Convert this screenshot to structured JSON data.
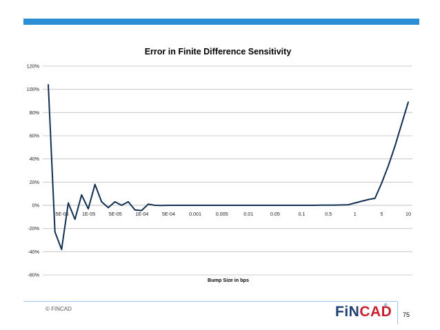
{
  "colors": {
    "top_band": "#2b8fd6",
    "series_line": "#0f2d4f",
    "gridline": "#bdbdbd",
    "footer_line": "#9ec5e6",
    "logo_blue": "#1d3f73",
    "logo_red": "#c8202f"
  },
  "footer": {
    "copyright": "© FINCAD",
    "logo_part_a": "FiN",
    "logo_part_b": "CAD",
    "logo_registered": "®",
    "page_number": "75"
  },
  "chart_data": {
    "type": "line",
    "title": "Error in Finite Difference Sensitivity",
    "xlabel": "Bump Size in bps",
    "ylabel": "",
    "ylim": [
      -60,
      120
    ],
    "y_unit": "%",
    "y_ticks": [
      {
        "value": 120,
        "label": "120%"
      },
      {
        "value": 100,
        "label": "100%"
      },
      {
        "value": 80,
        "label": "80%"
      },
      {
        "value": 60,
        "label": "60%"
      },
      {
        "value": 40,
        "label": "40%"
      },
      {
        "value": 20,
        "label": "20%"
      },
      {
        "value": 0,
        "label": "0%"
      },
      {
        "value": -20,
        "label": "-20%"
      },
      {
        "value": -40,
        "label": "-40%"
      },
      {
        "value": -60,
        "label": "-60%"
      }
    ],
    "x_tick_labels": [
      "5E-06",
      "1E-05",
      "5E-05",
      "1E-04",
      "5E-04",
      "0.001",
      "0.005",
      "0.01",
      "0.05",
      "0.1",
      "0.5",
      "1",
      "5",
      "10"
    ],
    "grid": "horizontal",
    "legend": "none",
    "series": [
      {
        "values": [
          104,
          -23,
          -38,
          2,
          -12,
          9,
          -3,
          18,
          3,
          -2,
          3,
          0,
          3,
          -4,
          -4.5,
          1,
          0,
          -0.2,
          0,
          0,
          0,
          0,
          0,
          0,
          0,
          0,
          0,
          0,
          0,
          0,
          0,
          0,
          0,
          0,
          0,
          0,
          0,
          0,
          0,
          0,
          0,
          0.1,
          0.1,
          0.2,
          0.3,
          0.5,
          2,
          3.5,
          5,
          6,
          19,
          34,
          51,
          70,
          89
        ]
      }
    ]
  }
}
